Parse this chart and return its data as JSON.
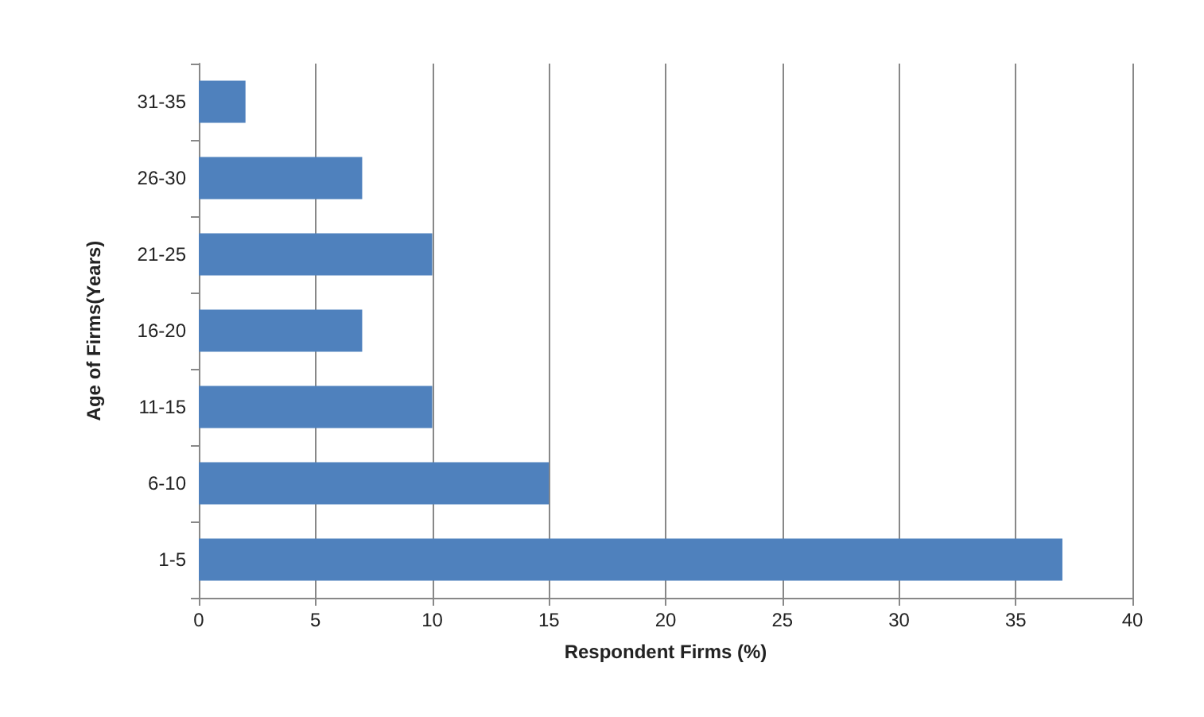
{
  "chart_data": {
    "type": "bar",
    "orientation": "horizontal",
    "xlabel": "Respondent Firms (%)",
    "ylabel": "Age of Firms(Years)",
    "categories": [
      "31-35",
      "26-30",
      "21-25",
      "16-20",
      "11-15",
      "6-10",
      "1-5"
    ],
    "values": [
      2,
      7,
      10,
      7,
      10,
      15,
      37
    ],
    "color": "#4f81bd",
    "xlim": [
      0,
      40
    ],
    "xticks": [
      0,
      5,
      10,
      15,
      20,
      25,
      30,
      35,
      40
    ],
    "grid": "x"
  }
}
